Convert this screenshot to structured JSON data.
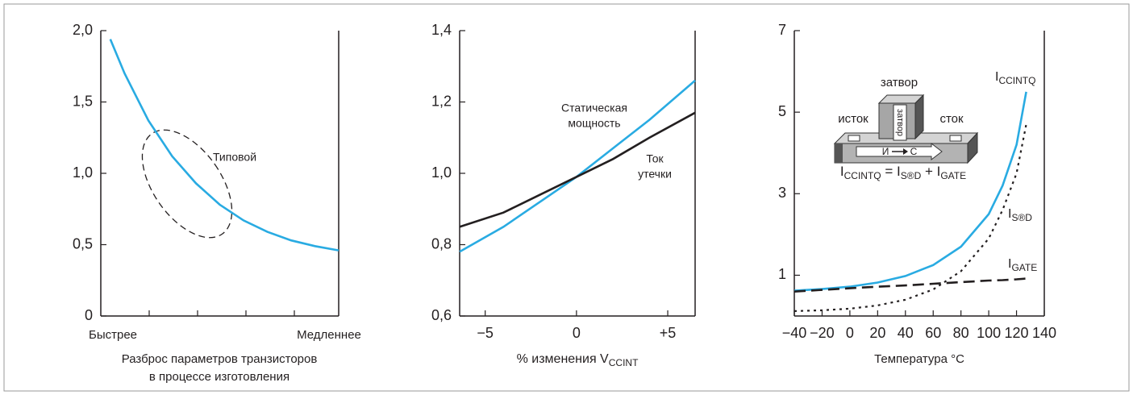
{
  "chart_data": [
    {
      "type": "line",
      "x": [
        0.2,
        0.5,
        1,
        1.5,
        2,
        2.5,
        3,
        3.5,
        4,
        4.5,
        5
      ],
      "series": [
        {
          "color": "#29abe2",
          "values": [
            1.94,
            1.7,
            1.37,
            1.12,
            0.93,
            0.78,
            0.67,
            0.59,
            0.53,
            0.49,
            0.46
          ]
        }
      ],
      "xlim": [
        0,
        5
      ],
      "ylim": [
        0,
        2
      ],
      "yticks": [
        0,
        {
          "value": 0.5,
          "label": "0,5"
        },
        {
          "value": 1,
          "label": "1,0"
        },
        {
          "value": 1.5,
          "label": "1,5"
        },
        {
          "value": 2,
          "label": "2,0"
        }
      ],
      "x_end_labels": [
        "Быстрее",
        "Медленнее"
      ],
      "xlabel": [
        "Разброс параметров транзисторов",
        "в процессе изготовления"
      ],
      "annotation": "Типовой"
    },
    {
      "type": "line",
      "x": [
        -6.4,
        -4,
        -2,
        0,
        2,
        4,
        6.5
      ],
      "series": [
        {
          "name": [
            "Статическая",
            "мощность"
          ],
          "color": "#29abe2",
          "values": [
            0.78,
            0.85,
            0.92,
            0.99,
            1.07,
            1.15,
            1.26
          ]
        },
        {
          "name": [
            "Ток",
            "утечки"
          ],
          "color": "#231f20",
          "values": [
            0.85,
            0.89,
            0.94,
            0.99,
            1.04,
            1.1,
            1.17
          ]
        }
      ],
      "xlim": [
        -6.4,
        6.5
      ],
      "xticks": [
        {
          "value": -5,
          "label": "−5"
        },
        0,
        {
          "value": 5,
          "label": "+5"
        }
      ],
      "ylim": [
        0.6,
        1.4
      ],
      "yticks": [
        {
          "value": 0.6,
          "label": "0,6"
        },
        {
          "value": 0.8,
          "label": "0,8"
        },
        {
          "value": 1,
          "label": "1,0"
        },
        {
          "value": 1.2,
          "label": "1,2"
        },
        {
          "value": 1.4,
          "label": "1,4"
        }
      ],
      "xlabel": "% изменения V",
      "xlabel_sub": "CCINT"
    },
    {
      "type": "line",
      "x": [
        -40,
        -20,
        0,
        20,
        40,
        60,
        80,
        100,
        110,
        120,
        127
      ],
      "series": [
        {
          "name": "I",
          "sub": "CCINTQ",
          "color": "#29abe2",
          "dash": "solid",
          "values": [
            0.62,
            0.66,
            0.72,
            0.82,
            0.98,
            1.25,
            1.7,
            2.5,
            3.2,
            4.2,
            5.5
          ]
        },
        {
          "name": "I",
          "sub": "S®D",
          "color": "#231f20",
          "dash": "dotted",
          "values": [
            0.12,
            0.14,
            0.18,
            0.26,
            0.4,
            0.65,
            1.1,
            1.9,
            2.6,
            3.5,
            4.7
          ]
        },
        {
          "name": "I",
          "sub": "GATE",
          "color": "#231f20",
          "dash": "dashed",
          "values": [
            0.6,
            0.64,
            0.68,
            0.72,
            0.75,
            0.79,
            0.83,
            0.87,
            0.88,
            0.9,
            0.92
          ]
        }
      ],
      "xlim": [
        -40,
        140
      ],
      "xticks": [
        {
          "value": -40,
          "label": "−40"
        },
        {
          "value": -20,
          "label": "−20"
        },
        0,
        20,
        40,
        60,
        80,
        100,
        120,
        140
      ],
      "ylim": [
        0,
        7
      ],
      "yticks": [
        1,
        3,
        5,
        7
      ],
      "xlabel": "Температура °C",
      "inset": {
        "gate": "затвор",
        "source": "исток",
        "drain": "сток",
        "gate_vertical": "затвор",
        "arrow_from": "И",
        "arrow_to": "С",
        "formula": [
          {
            "text": "I",
            "sub": "CCINTQ"
          },
          {
            "text": " = I",
            "sub": "S®D"
          },
          {
            "text": " + I",
            "sub": "GATE"
          }
        ]
      }
    }
  ]
}
